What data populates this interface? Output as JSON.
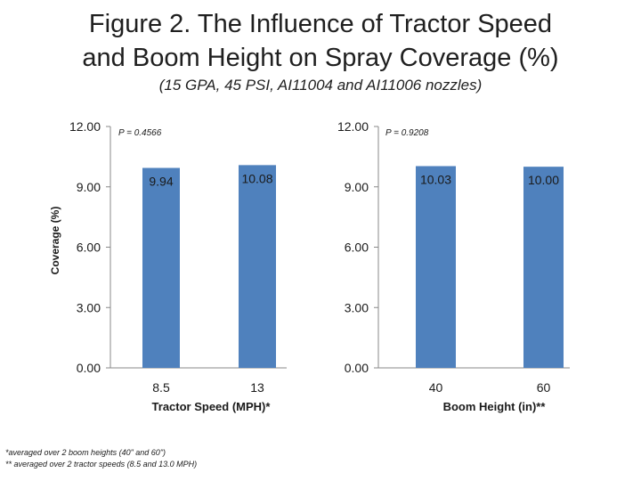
{
  "slide": {
    "title_line1": "Figure 2. The Influence of Tractor Speed",
    "title_line2": "and Boom Height on Spray Coverage (%)",
    "subtitle": "(15 GPA, 45 PSI, AI11004 and AI11006 nozzles)",
    "footnote_line1": "*averaged over 2 boom heights (40\" and 60\")",
    "footnote_line2": "** averaged over 2 tractor speeds (8.5 and 13.0 MPH)"
  },
  "chart_data": [
    {
      "type": "bar",
      "categories": [
        "8.5",
        "13"
      ],
      "values": [
        9.94,
        10.08
      ],
      "value_labels": [
        "9.94",
        "10.08"
      ],
      "xlabel": "Tractor Speed (MPH)*",
      "ylabel": "Coverage (%)",
      "ylim": [
        0,
        12
      ],
      "yticks": [
        0,
        3,
        6,
        9,
        12
      ],
      "ytick_labels": [
        "0.00",
        "3.00",
        "6.00",
        "9.00",
        "12.00"
      ],
      "annotation": "P = 0.4566",
      "bar_color": "#4f81bd",
      "grid": false,
      "legend": "none"
    },
    {
      "type": "bar",
      "categories": [
        "40",
        "60"
      ],
      "values": [
        10.03,
        10.0
      ],
      "value_labels": [
        "10.03",
        "10.00"
      ],
      "xlabel": "Boom Height (in)**",
      "ylabel": "",
      "ylim": [
        0,
        12
      ],
      "yticks": [
        0,
        3,
        6,
        9,
        12
      ],
      "ytick_labels": [
        "0.00",
        "3.00",
        "6.00",
        "9.00",
        "12.00"
      ],
      "annotation": "P = 0.9208",
      "bar_color": "#4f81bd",
      "grid": false,
      "legend": "none"
    }
  ]
}
